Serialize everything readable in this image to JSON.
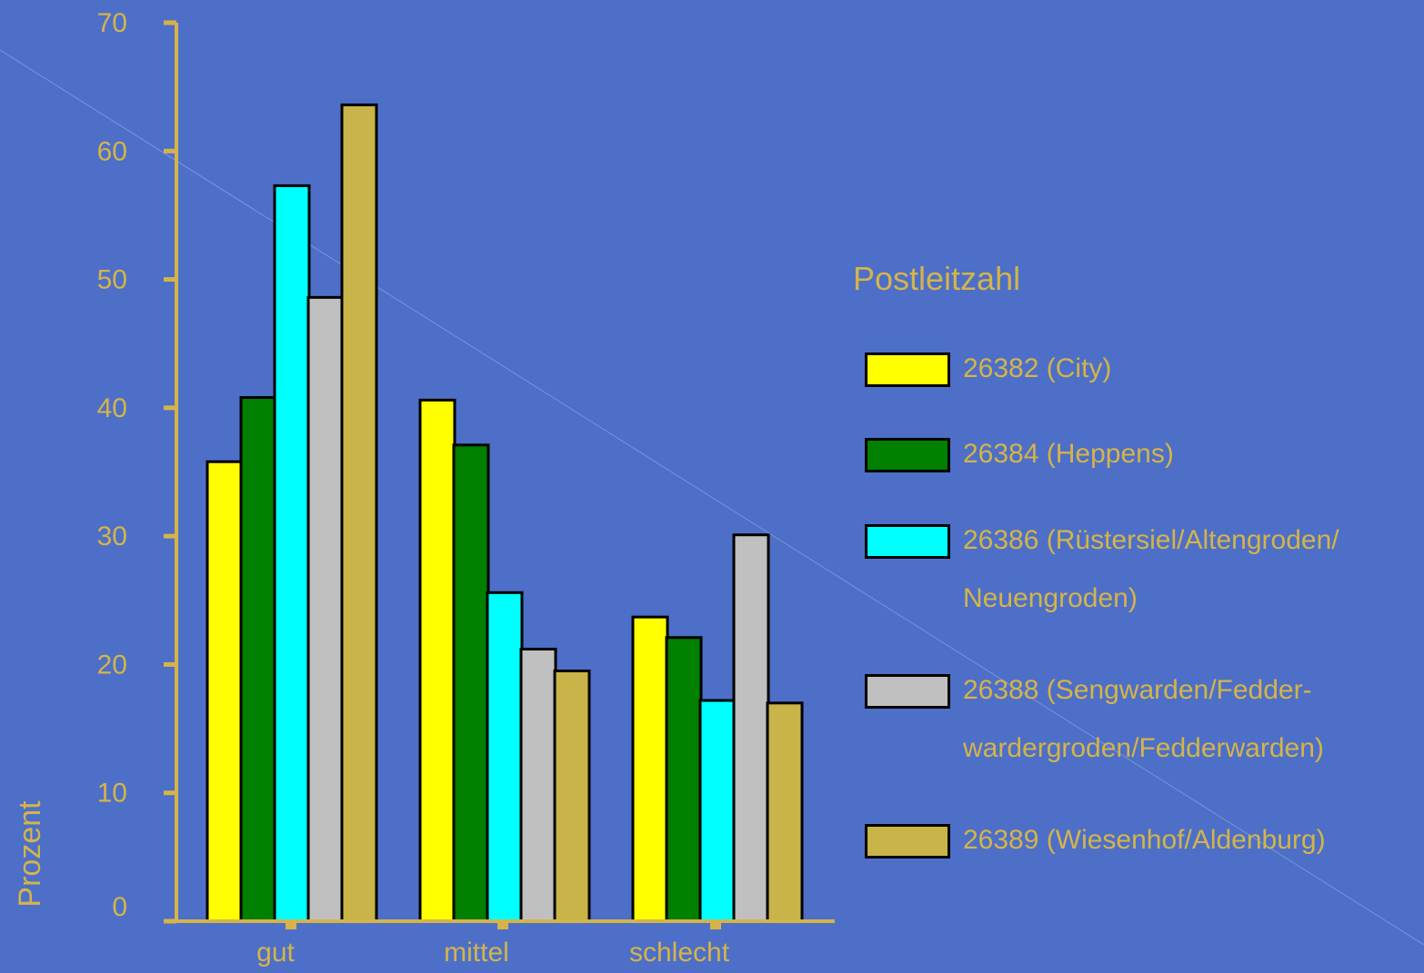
{
  "chart_data": {
    "type": "bar",
    "categories": [
      "gut",
      "mittel",
      "schlecht"
    ],
    "ylabel": "Prozent",
    "ylim": [
      0,
      70
    ],
    "yticks": [
      "0",
      "10",
      "20",
      "30",
      "40",
      "50",
      "60",
      "70"
    ],
    "legend_title": "Postleitzahl",
    "legend_position": "right",
    "series": [
      {
        "name": "26382 (City)",
        "color": "#ffff00",
        "values": [
          35.8,
          40.6,
          23.7
        ]
      },
      {
        "name": "26384 (Heppens)",
        "color": "#007f00",
        "values": [
          40.8,
          37.1,
          22.1
        ]
      },
      {
        "name": "26386 (Rüstersiel/Altengroden/ Neuengroden)",
        "color": "#00ffff",
        "values": [
          57.3,
          25.6,
          17.2
        ]
      },
      {
        "name": "26388 (Sengwarden/Fedder- wardergroden/Fedderwarden)",
        "color": "#c0c0c0",
        "values": [
          48.6,
          21.2,
          30.1
        ]
      },
      {
        "name": "26389 (Wiesenhof/Aldenburg)",
        "color": "#c8b448",
        "values": [
          63.6,
          19.5,
          17.0
        ]
      }
    ]
  },
  "legend_items": [
    {
      "line1": "26382 (City)",
      "line2": ""
    },
    {
      "line1": "26384 (Heppens)",
      "line2": ""
    },
    {
      "line1": "26386 (Rüstersiel/Altengroden/",
      "line2": "Neuengroden)"
    },
    {
      "line1": "26388 (Sengwarden/Fedder-",
      "line2": "wardergroden/Fedderwarden)"
    },
    {
      "line1": "26389 (Wiesenhof/Aldenburg)",
      "line2": ""
    }
  ],
  "colors": {
    "background": "#4d6fc7",
    "axis": "#d4b44a",
    "text": "#d4b44a"
  }
}
